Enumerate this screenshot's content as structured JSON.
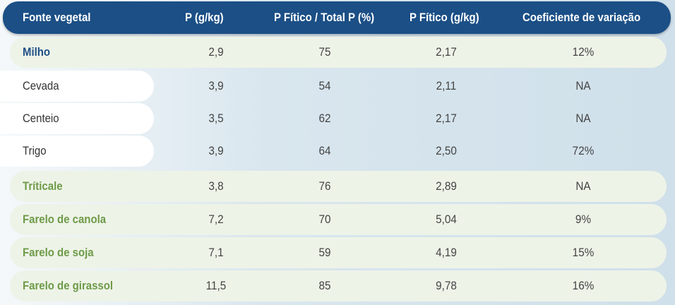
{
  "table": {
    "headers": [
      "Fonte vegetal",
      "P (g/kg)",
      "P Fítico / Total P (%)",
      "P Fítico (g/kg)",
      "Coeficiente de variação"
    ],
    "rows": [
      {
        "fonte": "Milho",
        "p": "2,9",
        "pfitico_total": "75",
        "pfitico": "2,17",
        "cv": "12%"
      },
      {
        "fonte": "Cevada",
        "p": "3,9",
        "pfitico_total": "54",
        "pfitico": "2,11",
        "cv": "NA"
      },
      {
        "fonte": "Centeio",
        "p": "3,5",
        "pfitico_total": "62",
        "pfitico": "2,17",
        "cv": "NA"
      },
      {
        "fonte": "Trigo",
        "p": "3,9",
        "pfitico_total": "64",
        "pfitico": "2,50",
        "cv": "72%"
      },
      {
        "fonte": "Tríticale",
        "p": "3,8",
        "pfitico_total": "76",
        "pfitico": "2,89",
        "cv": "NA"
      },
      {
        "fonte": "Farelo de canola",
        "p": "7,2",
        "pfitico_total": "70",
        "pfitico": "5,04",
        "cv": "9%"
      },
      {
        "fonte": "Farelo de soja",
        "p": "7,1",
        "pfitico_total": "59",
        "pfitico": "4,19",
        "cv": "15%"
      },
      {
        "fonte": "Farelo de girassol",
        "p": "11,5",
        "pfitico_total": "85",
        "pfitico": "9,78",
        "cv": "16%"
      }
    ]
  },
  "colors": {
    "header_bg": "#1b4f86",
    "milho_text": "#1f4f86",
    "green_text": "#6e9b48",
    "green_row_bg": "#eef3e8"
  }
}
